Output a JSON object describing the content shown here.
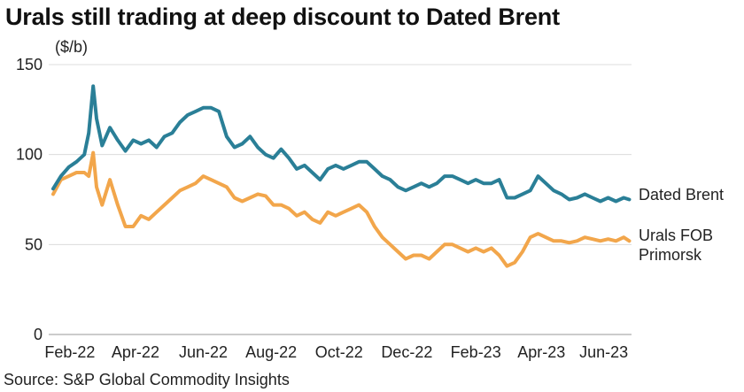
{
  "title": "Urals still trading at deep discount to Dated Brent",
  "unit_label": "($/b)",
  "source": "Source: S&P Global Commodity Insights",
  "colors": {
    "dated_brent": "#2a7f97",
    "urals": "#f2a64b",
    "grid": "#dcdcdc"
  },
  "chart_data": {
    "type": "line",
    "title": "Urals still trading at deep discount to Dated Brent",
    "ylabel": "($/b)",
    "xlabel": "",
    "ylim": [
      0,
      150
    ],
    "yticks": [
      0,
      50,
      100,
      150
    ],
    "xlim": [
      "2022-01-27",
      "2023-07-05"
    ],
    "xticks": [
      {
        "date": "2022-02-15",
        "label": "Feb-22"
      },
      {
        "date": "2022-04-15",
        "label": "Apr-22"
      },
      {
        "date": "2022-06-15",
        "label": "Jun-22"
      },
      {
        "date": "2022-08-15",
        "label": "Aug-22"
      },
      {
        "date": "2022-10-15",
        "label": "Oct-22"
      },
      {
        "date": "2022-12-15",
        "label": "Dec-22"
      },
      {
        "date": "2023-02-15",
        "label": "Feb-23"
      },
      {
        "date": "2023-04-15",
        "label": "Apr-23"
      },
      {
        "date": "2023-06-10",
        "label": "Jun-23"
      }
    ],
    "grid": true,
    "legend": "right end labels",
    "series": [
      {
        "name": "Dated Brent",
        "x": [
          "2022-01-31",
          "2022-02-07",
          "2022-02-14",
          "2022-02-21",
          "2022-02-28",
          "2022-03-04",
          "2022-03-08",
          "2022-03-11",
          "2022-03-16",
          "2022-03-23",
          "2022-03-30",
          "2022-04-06",
          "2022-04-13",
          "2022-04-20",
          "2022-04-27",
          "2022-05-04",
          "2022-05-11",
          "2022-05-18",
          "2022-05-25",
          "2022-06-01",
          "2022-06-08",
          "2022-06-15",
          "2022-06-22",
          "2022-06-29",
          "2022-07-06",
          "2022-07-13",
          "2022-07-20",
          "2022-07-27",
          "2022-08-03",
          "2022-08-10",
          "2022-08-17",
          "2022-08-24",
          "2022-08-31",
          "2022-09-07",
          "2022-09-14",
          "2022-09-21",
          "2022-09-28",
          "2022-10-05",
          "2022-10-12",
          "2022-10-19",
          "2022-10-26",
          "2022-11-02",
          "2022-11-09",
          "2022-11-16",
          "2022-11-23",
          "2022-11-30",
          "2022-12-07",
          "2022-12-14",
          "2022-12-21",
          "2022-12-28",
          "2023-01-04",
          "2023-01-11",
          "2023-01-18",
          "2023-01-25",
          "2023-02-01",
          "2023-02-08",
          "2023-02-15",
          "2023-02-22",
          "2023-03-01",
          "2023-03-08",
          "2023-03-15",
          "2023-03-22",
          "2023-03-29",
          "2023-04-05",
          "2023-04-12",
          "2023-04-19",
          "2023-04-26",
          "2023-05-03",
          "2023-05-10",
          "2023-05-17",
          "2023-05-24",
          "2023-05-31",
          "2023-06-07",
          "2023-06-14",
          "2023-06-21",
          "2023-06-28",
          "2023-07-03"
        ],
        "values": [
          81,
          88,
          93,
          96,
          100,
          112,
          138,
          120,
          105,
          115,
          108,
          102,
          108,
          106,
          108,
          104,
          110,
          112,
          118,
          122,
          124,
          126,
          126,
          124,
          110,
          104,
          106,
          110,
          104,
          100,
          98,
          103,
          98,
          92,
          94,
          90,
          86,
          92,
          94,
          92,
          94,
          96,
          96,
          92,
          88,
          86,
          82,
          80,
          82,
          84,
          82,
          84,
          88,
          88,
          86,
          84,
          86,
          84,
          84,
          86,
          76,
          76,
          78,
          80,
          88,
          84,
          80,
          78,
          75,
          76,
          78,
          76,
          74,
          76,
          74,
          76,
          75
        ]
      },
      {
        "name": "Urals FOB Primorsk",
        "x": [
          "2022-01-31",
          "2022-02-07",
          "2022-02-14",
          "2022-02-21",
          "2022-02-28",
          "2022-03-04",
          "2022-03-08",
          "2022-03-11",
          "2022-03-16",
          "2022-03-23",
          "2022-03-30",
          "2022-04-06",
          "2022-04-13",
          "2022-04-20",
          "2022-04-27",
          "2022-05-04",
          "2022-05-11",
          "2022-05-18",
          "2022-05-25",
          "2022-06-01",
          "2022-06-08",
          "2022-06-15",
          "2022-06-22",
          "2022-06-29",
          "2022-07-06",
          "2022-07-13",
          "2022-07-20",
          "2022-07-27",
          "2022-08-03",
          "2022-08-10",
          "2022-08-17",
          "2022-08-24",
          "2022-08-31",
          "2022-09-07",
          "2022-09-14",
          "2022-09-21",
          "2022-09-28",
          "2022-10-05",
          "2022-10-12",
          "2022-10-19",
          "2022-10-26",
          "2022-11-02",
          "2022-11-09",
          "2022-11-16",
          "2022-11-23",
          "2022-11-30",
          "2022-12-07",
          "2022-12-14",
          "2022-12-21",
          "2022-12-28",
          "2023-01-04",
          "2023-01-11",
          "2023-01-18",
          "2023-01-25",
          "2023-02-01",
          "2023-02-08",
          "2023-02-15",
          "2023-02-22",
          "2023-03-01",
          "2023-03-08",
          "2023-03-15",
          "2023-03-22",
          "2023-03-29",
          "2023-04-05",
          "2023-04-12",
          "2023-04-19",
          "2023-04-26",
          "2023-05-03",
          "2023-05-10",
          "2023-05-17",
          "2023-05-24",
          "2023-05-31",
          "2023-06-07",
          "2023-06-14",
          "2023-06-21",
          "2023-06-28",
          "2023-07-03"
        ],
        "values": [
          78,
          86,
          88,
          90,
          90,
          88,
          101,
          82,
          72,
          86,
          72,
          60,
          60,
          66,
          64,
          68,
          72,
          76,
          80,
          82,
          84,
          88,
          86,
          84,
          82,
          76,
          74,
          76,
          78,
          77,
          72,
          72,
          70,
          66,
          68,
          64,
          62,
          68,
          66,
          68,
          70,
          72,
          68,
          60,
          54,
          50,
          46,
          42,
          44,
          44,
          42,
          46,
          50,
          50,
          48,
          46,
          48,
          46,
          48,
          44,
          38,
          40,
          46,
          54,
          56,
          54,
          52,
          52,
          51,
          52,
          54,
          53,
          52,
          53,
          52,
          54,
          52
        ]
      }
    ]
  }
}
